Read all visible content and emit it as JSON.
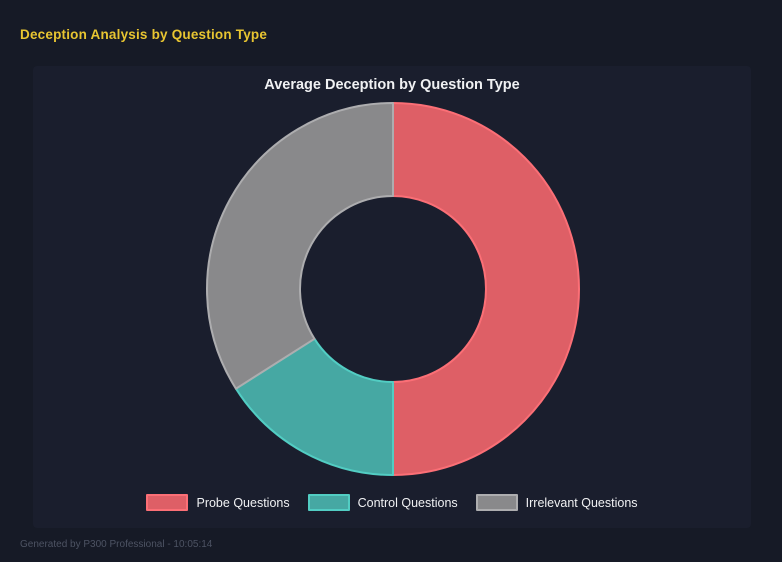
{
  "page": {
    "title": "Deception Analysis by Question Type",
    "footer": "Generated by P300 Professional - 10:05:14"
  },
  "chart_data": {
    "type": "pie",
    "variant": "donut",
    "title": "Average Deception by Question Type",
    "categories": [
      "Probe Questions",
      "Control Questions",
      "Irrelevant Questions"
    ],
    "values": [
      50,
      16,
      34
    ],
    "unit": "percent-of-circle",
    "start_angle_deg": 0,
    "direction": "clockwise",
    "cutout": "50%",
    "legend_position": "bottom",
    "colors": [
      {
        "fill": "#de5f66",
        "border": "#fb6f76"
      },
      {
        "fill": "#46a8a3",
        "border": "#52cdc3"
      },
      {
        "fill": "#89898b",
        "border": "#adadaf"
      }
    ]
  },
  "theme": {
    "page_bg": "#161a26",
    "panel_bg": "#1a1e2d",
    "accent": "#e8c531",
    "text": "#f0f1f3",
    "muted": "#4d5363"
  }
}
